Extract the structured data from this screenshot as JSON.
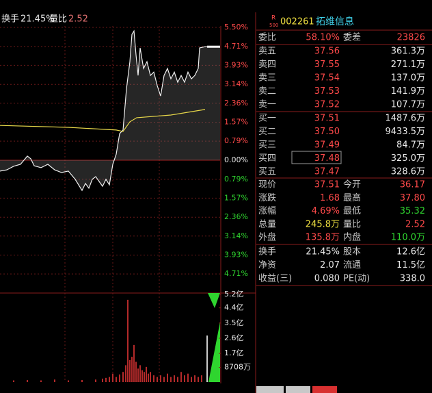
{
  "chart_data": {
    "type": "line",
    "header": {
      "turnover_label": "换手",
      "turnover": "21.45%",
      "ratio_label": "量比",
      "ratio": "2.52"
    },
    "xlim": [
      0,
      322
    ],
    "ylim": [
      -5.5,
      5.5
    ],
    "yticks": [
      {
        "value": 5.5,
        "label": "5.50%"
      },
      {
        "value": 4.71,
        "label": "4.71%"
      },
      {
        "value": 3.93,
        "label": "3.93%"
      },
      {
        "value": 3.14,
        "label": "3.14%"
      },
      {
        "value": 2.36,
        "label": "2.36%"
      },
      {
        "value": 1.57,
        "label": "1.57%"
      },
      {
        "value": 0.79,
        "label": "0.79%"
      },
      {
        "value": 0,
        "label": "0.00%"
      },
      {
        "value": -0.79,
        "label": "0.79%"
      },
      {
        "value": -1.57,
        "label": "1.57%"
      },
      {
        "value": -2.36,
        "label": "2.36%"
      },
      {
        "value": -3.14,
        "label": "3.14%"
      },
      {
        "value": -3.93,
        "label": "3.93%"
      },
      {
        "value": -4.71,
        "label": "4.71%"
      }
    ],
    "grid": true,
    "series": [
      {
        "color": "#f0f0f0",
        "x": [
          0,
          10,
          20,
          30,
          40,
          45,
          50,
          60,
          70,
          80,
          90,
          100,
          110,
          115,
          120,
          125,
          130,
          135,
          140,
          145,
          150,
          155,
          160,
          165,
          170,
          175,
          180,
          185,
          190,
          193,
          196,
          199,
          202,
          205,
          210,
          215,
          220,
          225,
          230,
          235,
          240,
          245,
          250,
          255,
          260,
          265,
          270,
          275,
          280,
          285,
          290,
          292,
          300,
          322
        ],
        "values": [
          -0.45,
          -0.4,
          -0.25,
          -0.17,
          0.17,
          0.06,
          -0.23,
          -0.31,
          -0.17,
          -0.4,
          -0.51,
          -0.45,
          -0.79,
          -1.02,
          -1.25,
          -0.96,
          -1.16,
          -0.79,
          -0.68,
          -0.88,
          -1.08,
          -0.79,
          -1.02,
          -0.17,
          0.25,
          1.1,
          1.25,
          2.95,
          4.08,
          5.21,
          5.35,
          4.36,
          3.51,
          4.65,
          3.8,
          4.08,
          3.51,
          3.65,
          3.09,
          2.66,
          3.51,
          3.8,
          3.37,
          3.65,
          3.23,
          3.51,
          3.23,
          3.65,
          3.37,
          3.51,
          3.8,
          4.65,
          4.7,
          4.7
        ]
      },
      {
        "color": "#e8d84a",
        "x": [
          0,
          100,
          170,
          180,
          190,
          200,
          250,
          300
        ],
        "values": [
          1.44,
          1.36,
          1.25,
          1.19,
          1.59,
          1.76,
          1.87,
          2.1
        ]
      }
    ],
    "volume": {
      "color": "#e03434",
      "ylim": [
        0,
        5.2
      ],
      "yticks": [
        {
          "value": 5.2,
          "label": "5.2亿"
        },
        {
          "value": 4.4,
          "label": "4.4亿"
        },
        {
          "value": 3.5,
          "label": "3.5亿"
        },
        {
          "value": 2.6,
          "label": "2.6亿"
        },
        {
          "value": 1.7,
          "label": "1.7亿"
        },
        {
          "value": 0.8708,
          "label": "8708万"
        }
      ],
      "x": [
        20,
        40,
        60,
        80,
        100,
        120,
        140,
        150,
        155,
        160,
        165,
        170,
        175,
        180,
        184,
        187,
        190,
        193,
        196,
        199,
        202,
        205,
        208,
        211,
        214,
        217,
        220,
        225,
        230,
        235,
        240,
        245,
        250,
        255,
        260,
        265,
        270,
        275,
        280,
        285,
        290,
        295,
        303
      ],
      "values": [
        0.1,
        0.12,
        0.1,
        0.15,
        0.1,
        0.12,
        0.15,
        0.2,
        0.25,
        0.3,
        0.5,
        0.3,
        0.45,
        0.6,
        1.0,
        4.88,
        1.3,
        1.5,
        2.2,
        1.2,
        0.8,
        1.0,
        0.7,
        0.6,
        0.9,
        0.5,
        0.6,
        0.4,
        0.3,
        0.4,
        0.3,
        0.5,
        0.3,
        0.4,
        0.3,
        0.6,
        0.4,
        0.5,
        0.3,
        0.4,
        0.3,
        0.4,
        2.76
      ]
    }
  },
  "quote_panel": {
    "badge_top": "R",
    "badge_bottom": "500",
    "code": "002261",
    "name": "拓维信息",
    "ratio_row": [
      "委比",
      "58.10%",
      "委差",
      "23826"
    ],
    "sell": [
      [
        "卖五",
        "37.56",
        "361.3万"
      ],
      [
        "卖四",
        "37.55",
        "271.1万"
      ],
      [
        "卖三",
        "37.54",
        "137.0万"
      ],
      [
        "卖二",
        "37.53",
        "141.9万"
      ],
      [
        "卖一",
        "37.52",
        "107.7万"
      ]
    ],
    "buy": [
      [
        "买一",
        "37.51",
        "1487.6万"
      ],
      [
        "买二",
        "37.50",
        "9433.5万"
      ],
      [
        "买三",
        "37.49",
        "84.7万"
      ],
      [
        "买四",
        "37.48",
        "325.0万"
      ],
      [
        "买五",
        "37.47",
        "328.6万"
      ]
    ],
    "stats": [
      [
        "现价",
        "37.51",
        "今开",
        "36.17"
      ],
      [
        "涨跌",
        "1.68",
        "最高",
        "37.80"
      ],
      [
        "涨幅",
        "4.69%",
        "最低",
        "35.32"
      ],
      [
        "总量",
        "245.8万",
        "量比",
        "2.52"
      ],
      [
        "外盘",
        "135.8万",
        "内盘",
        "110.0万"
      ]
    ],
    "info": [
      [
        "换手",
        "21.45%",
        "股本",
        "12.6亿"
      ],
      [
        "净资",
        "2.07",
        "流通",
        "11.5亿"
      ],
      [
        "收益(三)",
        "0.080",
        "PE(动)",
        "338.0"
      ]
    ]
  }
}
